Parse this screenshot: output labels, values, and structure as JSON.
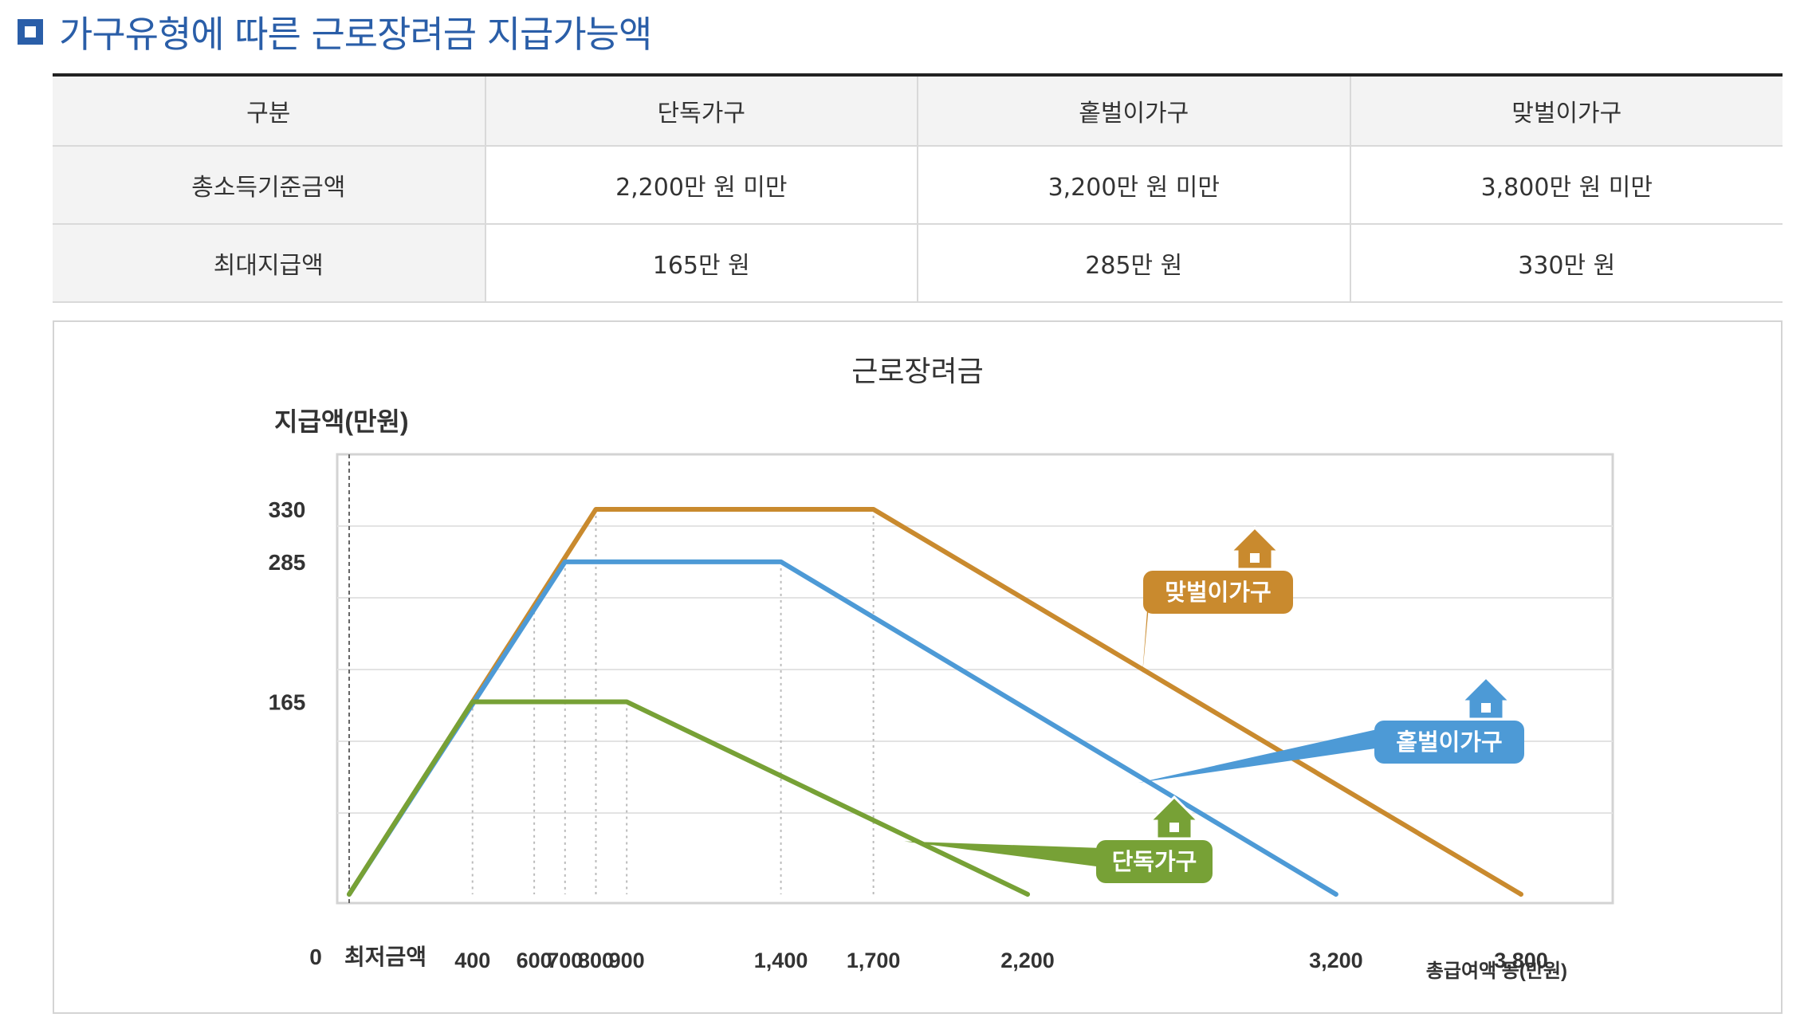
{
  "heading": {
    "title": "가구유형에 따른 근로장려금 지급가능액"
  },
  "table": {
    "headers": [
      "구분",
      "단독가구",
      "홑벌이가구",
      "맞벌이가구"
    ],
    "rows": [
      {
        "label": "총소득기준금액",
        "values": [
          "2,200만 원 미만",
          "3,200만 원 미만",
          "3,800만 원 미만"
        ]
      },
      {
        "label": "최대지급액",
        "values": [
          "165만 원",
          "285만 원",
          "330만 원"
        ]
      }
    ]
  },
  "chart_data": {
    "type": "line",
    "title": "근로장려금",
    "ylabel": "지급액(만원)",
    "xlabel": "총급여액 등(만원)",
    "origin_label": "0",
    "min_wage_label": "최저금액",
    "xlim": [
      0,
      3800
    ],
    "ylim": [
      0,
      330
    ],
    "x_ticks": [
      {
        "value": 400,
        "label": "400"
      },
      {
        "value": 600,
        "label": "600"
      },
      {
        "value": 700,
        "label": "700"
      },
      {
        "value": 800,
        "label": "800"
      },
      {
        "value": 900,
        "label": "900"
      },
      {
        "value": 1400,
        "label": "1,400"
      },
      {
        "value": 1700,
        "label": "1,700"
      },
      {
        "value": 2200,
        "label": "2,200"
      },
      {
        "value": 3200,
        "label": "3,200"
      },
      {
        "value": 3800,
        "label": "3,800"
      }
    ],
    "y_ticks": [
      {
        "value": 165,
        "label": "165"
      },
      {
        "value": 285,
        "label": "285"
      },
      {
        "value": 330,
        "label": "330"
      }
    ],
    "grid": true,
    "series": [
      {
        "name": "단독가구",
        "color": "#77a136",
        "icon": "house-icon",
        "x": [
          0,
          400,
          900,
          2200
        ],
        "y": [
          0,
          165,
          165,
          0
        ]
      },
      {
        "name": "홑벌이가구",
        "color": "#4d9ad6",
        "icon": "house-icon",
        "x": [
          0,
          700,
          1400,
          3200
        ],
        "y": [
          0,
          285,
          285,
          0
        ]
      },
      {
        "name": "맞벌이가구",
        "color": "#c98a2e",
        "icon": "house-icon",
        "x": [
          0,
          800,
          1700,
          3800
        ],
        "y": [
          0,
          330,
          330,
          0
        ]
      }
    ]
  }
}
